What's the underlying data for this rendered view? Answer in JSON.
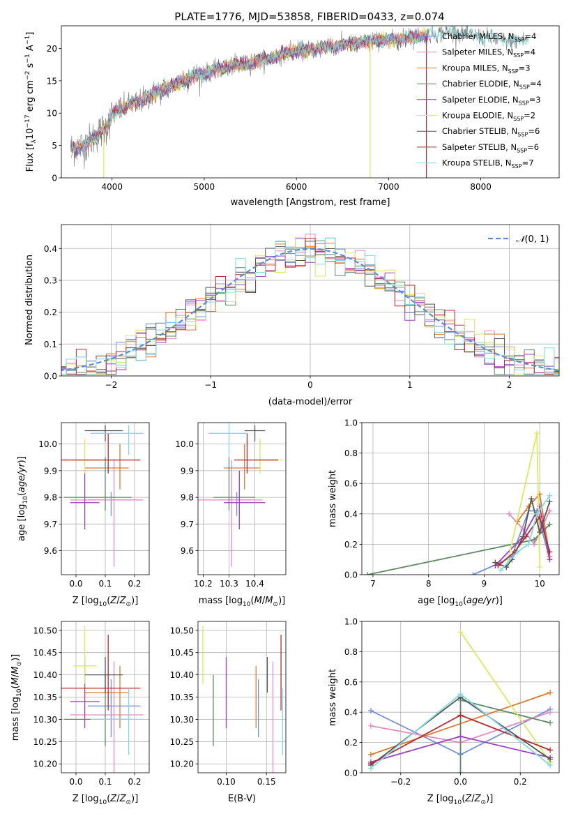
{
  "figure": {
    "title": "PLATE=1776, MJD=53858, FIBERID=0433, z=0.074"
  },
  "colors": {
    "Chabrier MILES": "#6f8fdc",
    "Salpeter MILES": "#e58ac0",
    "Kroupa MILES": "#e0782a",
    "Chabrier ELODIE": "#5c8a64",
    "Salpeter ELODIE": "#9b3fbf",
    "Kroupa ELODIE": "#d9ea5a",
    "Chabrier STELIB": "#555555",
    "Salpeter STELIB": "#b8292f",
    "Kroupa STELIB": "#7fdbe0",
    "gauss": "#5b8bd6"
  },
  "models": [
    {
      "name": "Chabrier MILES",
      "nssp": 4,
      "age": 9.79,
      "age_err": [
        0.06,
        0.03
      ],
      "Z": 0.12,
      "Z_err": [
        0.08,
        0.1
      ],
      "mass": 10.33,
      "mass_err": [
        0.07,
        0.06
      ],
      "ebv": 0.14
    },
    {
      "name": "Salpeter MILES",
      "nssp": 4,
      "age": 9.79,
      "age_err": [
        0.25,
        0.15
      ],
      "Z": 0.13,
      "Z_err": [
        0.15,
        0.1
      ],
      "mass": 10.31,
      "mass_err": [
        0.13,
        0.12
      ],
      "ebv": 0.158
    },
    {
      "name": "Kroupa MILES",
      "nssp": 3,
      "age": 9.91,
      "age_err": [
        0.08,
        0.09
      ],
      "Z": 0.15,
      "Z_err": [
        0.12,
        0.03
      ],
      "mass": 10.36,
      "mass_err": [
        0.08,
        0.06
      ],
      "ebv": 0.137
    },
    {
      "name": "Chabrier ELODIE",
      "nssp": 4,
      "age": 9.8,
      "age_err": [
        0.05,
        0.15
      ],
      "Z": 0.1,
      "Z_err": [
        0.14,
        0.09
      ],
      "mass": 10.3,
      "mass_err": [
        0.06,
        0.1
      ],
      "ebv": 0.084
    },
    {
      "name": "Salpeter ELODIE",
      "nssp": 3,
      "age": 9.78,
      "age_err": [
        0.1,
        0.12
      ],
      "Z": 0.03,
      "Z_err": [
        0.05,
        0.05
      ],
      "mass": 10.34,
      "mass_err": [
        0.06,
        0.1
      ],
      "ebv": 0.1
    },
    {
      "name": "Kroupa ELODIE",
      "nssp": 2,
      "age": 9.94,
      "age_err": [
        0.05,
        0.08
      ],
      "Z": 0.03,
      "Z_err": [
        0.04,
        0.04
      ],
      "mass": 10.42,
      "mass_err": [
        0.04,
        0.09
      ],
      "ebv": 0.071
    },
    {
      "name": "Chabrier STELIB",
      "nssp": 6,
      "age": 10.05,
      "age_err": [
        0.04,
        0.02
      ],
      "Z": 0.1,
      "Z_err": [
        0.07,
        0.06
      ],
      "mass": 10.4,
      "mass_err": [
        0.04,
        0.04
      ],
      "ebv": 0.151
    },
    {
      "name": "Salpeter STELIB",
      "nssp": 6,
      "age": 9.94,
      "age_err": [
        0.05,
        0.1
      ],
      "Z": 0.11,
      "Z_err": [
        0.22,
        0.11
      ],
      "mass": 10.37,
      "mass_err": [
        0.05,
        0.12
      ],
      "ebv": 0.168
    },
    {
      "name": "Kroupa STELIB",
      "nssp": 7,
      "age": 10.04,
      "age_err": [
        0.08,
        0.03
      ],
      "Z": 0.18,
      "Z_err": [
        0.13,
        0.05
      ],
      "mass": 10.3,
      "mass_err": [
        0.08,
        0.07
      ],
      "ebv": 0.17
    }
  ],
  "chart_data": [
    {
      "type": "line",
      "title": "PLATE=1776, MJD=53858, FIBERID=0433, z=0.074",
      "xlabel": "wavelength [Angstrom, rest frame]",
      "ylabel": "Flux [f_λ 10^-17 erg cm^-2 s^-1 A^-1]",
      "xlim": [
        3450,
        8850
      ],
      "ylim": [
        0,
        23.5
      ],
      "xticks": [
        4000,
        5000,
        6000,
        7000,
        8000
      ],
      "yticks": [
        0,
        5,
        10,
        15,
        20
      ],
      "legend_position": "right",
      "legend": [
        "Chabrier MILES, N_SSP=4",
        "Salpeter MILES, N_SSP=4",
        "Kroupa MILES, N_SSP=3",
        "Chabrier ELODIE, N_SSP=4",
        "Salpeter ELODIE, N_SSP=3",
        "Kroupa ELODIE, N_SSP=2",
        "Chabrier STELIB, N_SSP=6",
        "Salpeter STELIB, N_SSP=6",
        "Kroupa STELIB, N_SSP=7"
      ],
      "continuum": {
        "wavelength": [
          3550,
          3700,
          3850,
          3950,
          4000,
          4100,
          4300,
          4500,
          4700,
          4900,
          5100,
          5300,
          5500,
          5700,
          5900,
          6100,
          6300,
          6500,
          6700,
          6900,
          7100,
          7300,
          7500,
          7700,
          7900,
          8100,
          8300,
          8500
        ],
        "flux": [
          4.5,
          5.0,
          6.8,
          8.0,
          9.8,
          10.7,
          11.8,
          13.3,
          14.6,
          15.8,
          16.6,
          17.3,
          17.7,
          18.5,
          19.3,
          19.8,
          20.1,
          20.5,
          20.9,
          21.2,
          21.4,
          21.8,
          22.2,
          22.6,
          22.0,
          21.6,
          21.1,
          21.4
        ]
      },
      "spikes": [
        {
          "wavelength": 3910,
          "flux": 0
        },
        {
          "wavelength": 6800,
          "flux": 0
        },
        {
          "wavelength": 7410,
          "flux": 0
        }
      ]
    },
    {
      "type": "line",
      "title": "",
      "xlabel": "(data-model)/error",
      "ylabel": "Normed distribution",
      "xlim": [
        -2.5,
        2.5
      ],
      "ylim": [
        0,
        0.475
      ],
      "xticks": [
        -2,
        -1,
        0,
        1,
        2
      ],
      "yticks": [
        0.0,
        0.1,
        0.2,
        0.3,
        0.4
      ],
      "grid": true,
      "legend": [
        "𝒩(0, 1)"
      ],
      "legend_position": "top-right",
      "series_note": "one step histogram per model plus a dashed standard normal curve",
      "gauss": {
        "mu": 0,
        "sigma": 1
      }
    },
    {
      "type": "scatter",
      "xlabel": "Z [log10(Z/Z⊙)]",
      "ylabel": "age [log10(age/yr)]",
      "xlim": [
        -0.05,
        0.25
      ],
      "ylim": [
        9.51,
        10.08
      ],
      "xticks": [
        0.0,
        0.1,
        0.2
      ],
      "yticks": [
        9.6,
        9.7,
        9.8,
        9.9,
        10.0
      ],
      "grid": true
    },
    {
      "type": "scatter",
      "xlabel": "mass [log10(M/M⊙)]",
      "ylabel": "",
      "xlim": [
        10.18,
        10.52
      ],
      "ylim": [
        9.51,
        10.08
      ],
      "xticks": [
        10.2,
        10.3,
        10.4
      ],
      "yticks": [
        9.6,
        9.7,
        9.8,
        9.9,
        10.0
      ],
      "grid": true
    },
    {
      "type": "line",
      "xlabel": "age [log10(age/yr)]",
      "ylabel": "mass weight",
      "xlim": [
        6.8,
        10.35
      ],
      "ylim": [
        0,
        1.0
      ],
      "xticks": [
        7,
        8,
        9,
        10
      ],
      "yticks": [
        0.0,
        0.2,
        0.4,
        0.6,
        0.8,
        1.0
      ],
      "grid": true,
      "series": [
        {
          "name": "Chabrier MILES",
          "x": [
            8.8,
            9.3,
            9.5,
            9.8,
            9.95,
            10.18
          ],
          "y": [
            0.0,
            0.08,
            0.12,
            0.42,
            0.42,
            0.1
          ]
        },
        {
          "name": "Salpeter MILES",
          "x": [
            9.45,
            9.7,
            9.9,
            10.18
          ],
          "y": [
            0.4,
            0.3,
            0.2,
            0.42
          ]
        },
        {
          "name": "Kroupa MILES",
          "x": [
            9.6,
            9.8,
            10.0,
            10.18
          ],
          "y": [
            0.35,
            0.45,
            0.53,
            0.12
          ]
        },
        {
          "name": "Chabrier ELODIE",
          "x": [
            6.9,
            9.9,
            10.18
          ],
          "y": [
            0.0,
            0.23,
            0.33
          ]
        },
        {
          "name": "Salpeter ELODIE",
          "x": [
            9.2,
            9.7,
            10.0,
            10.18
          ],
          "y": [
            0.06,
            0.25,
            0.45,
            0.1
          ]
        },
        {
          "name": "Kroupa ELODIE",
          "x": [
            9.4,
            9.95,
            10.0
          ],
          "y": [
            0.05,
            0.93,
            0.05
          ]
        },
        {
          "name": "Chabrier STELIB",
          "x": [
            9.2,
            9.4,
            9.5,
            9.7,
            9.85,
            10.0,
            10.18
          ],
          "y": [
            0.08,
            0.05,
            0.1,
            0.25,
            0.5,
            0.28,
            0.48
          ]
        },
        {
          "name": "Salpeter STELIB",
          "x": [
            9.25,
            9.55,
            9.75,
            10.0,
            10.18
          ],
          "y": [
            0.06,
            0.15,
            0.25,
            0.38,
            0.15
          ]
        },
        {
          "name": "Kroupa STELIB",
          "x": [
            9.3,
            9.6,
            9.8,
            9.95,
            10.18
          ],
          "y": [
            0.03,
            0.15,
            0.2,
            0.4,
            0.52
          ]
        }
      ]
    },
    {
      "type": "scatter",
      "xlabel": "Z [log10(Z/Z⊙)]",
      "ylabel": "mass [log10(M/M⊙)]",
      "xlim": [
        -0.05,
        0.25
      ],
      "ylim": [
        10.18,
        10.52
      ],
      "xticks": [
        0.0,
        0.1,
        0.2
      ],
      "yticks": [
        10.2,
        10.25,
        10.3,
        10.35,
        10.4,
        10.45,
        10.5
      ],
      "grid": true
    },
    {
      "type": "scatter",
      "xlabel": "E(B-V)",
      "ylabel": "",
      "xlim": [
        0.065,
        0.174
      ],
      "ylim": [
        10.18,
        10.52
      ],
      "xticks": [
        0.1,
        0.15
      ],
      "yticks": [
        10.2,
        10.25,
        10.3,
        10.35,
        10.4,
        10.45,
        10.5
      ],
      "grid": true
    },
    {
      "type": "line",
      "xlabel": "Z [log10(Z/Z⊙)]",
      "ylabel": "mass weight",
      "xlim": [
        -0.33,
        0.33
      ],
      "ylim": [
        0,
        1.0
      ],
      "xticks": [
        -0.2,
        0.0,
        0.2
      ],
      "yticks": [
        0.0,
        0.2,
        0.4,
        0.6,
        0.8,
        1.0
      ],
      "grid": true,
      "series": [
        {
          "name": "Chabrier MILES",
          "x": [
            -0.3,
            0.0,
            0.3
          ],
          "y": [
            0.41,
            0.12,
            0.42
          ]
        },
        {
          "name": "Salpeter MILES",
          "x": [
            -0.3,
            0.0,
            0.3
          ],
          "y": [
            0.31,
            0.2,
            0.4
          ]
        },
        {
          "name": "Kroupa MILES",
          "x": [
            -0.3,
            0.3
          ],
          "y": [
            0.12,
            0.53
          ]
        },
        {
          "name": "Chabrier ELODIE",
          "x": [
            0.0,
            0.0,
            0.3
          ],
          "y": [
            0.0,
            0.48,
            0.33
          ]
        },
        {
          "name": "Salpeter ELODIE",
          "x": [
            -0.3,
            0.0,
            0.3
          ],
          "y": [
            0.07,
            0.24,
            0.1
          ]
        },
        {
          "name": "Kroupa ELODIE",
          "x": [
            0.0,
            0.3
          ],
          "y": [
            0.93,
            0.07
          ]
        },
        {
          "name": "Chabrier STELIB",
          "x": [
            -0.3,
            0.0,
            0.3
          ],
          "y": [
            0.05,
            0.5,
            0.09
          ]
        },
        {
          "name": "Salpeter STELIB",
          "x": [
            -0.3,
            0.0,
            0.3
          ],
          "y": [
            0.06,
            0.38,
            0.15
          ]
        },
        {
          "name": "Kroupa STELIB",
          "x": [
            -0.3,
            0.0,
            0.3
          ],
          "y": [
            0.03,
            0.52,
            0.05
          ]
        }
      ]
    }
  ]
}
